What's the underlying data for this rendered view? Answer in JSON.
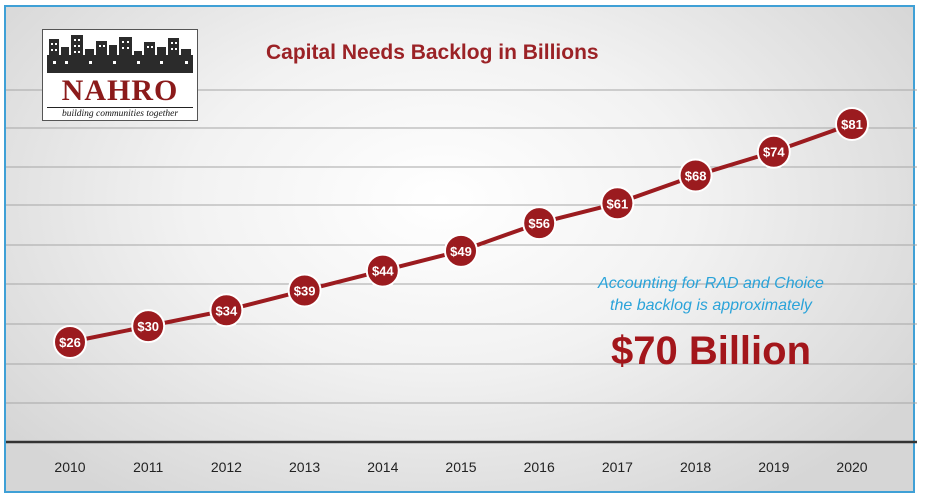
{
  "chart_data": {
    "type": "line",
    "title": "Capital Needs Backlog in Billions",
    "x": [
      "2010",
      "2011",
      "2012",
      "2013",
      "2014",
      "2015",
      "2016",
      "2017",
      "2018",
      "2019",
      "2020"
    ],
    "series": [
      {
        "values": [
          26,
          30,
          34,
          39,
          44,
          49,
          56,
          61,
          68,
          74,
          81
        ],
        "data_labels": [
          "$26",
          "$30",
          "$34",
          "$39",
          "$44",
          "$49",
          "$56",
          "$61",
          "$68",
          "$74",
          "$81"
        ]
      }
    ],
    "grid": true,
    "colors": {
      "line": "#9b1b1f",
      "marker": "#9b1b1f",
      "annotation_text": "#2aa3d9",
      "annotation_emphasis": "#a3161b"
    }
  },
  "logo": {
    "brand": "NAHRO",
    "tagline": "building communities together"
  },
  "annotation": {
    "line1": "Accounting for RAD and Choice",
    "line2": "the backlog is approximately",
    "emphasis": "$70 Billion"
  }
}
